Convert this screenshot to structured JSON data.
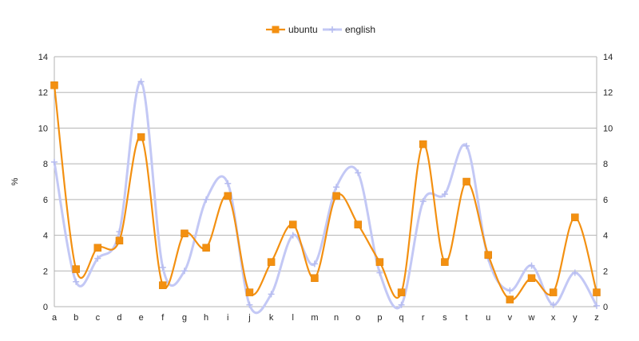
{
  "chart_data": {
    "type": "line",
    "smooth": true,
    "categories": [
      "a",
      "b",
      "c",
      "d",
      "e",
      "f",
      "g",
      "h",
      "i",
      "j",
      "k",
      "l",
      "m",
      "n",
      "o",
      "p",
      "q",
      "r",
      "s",
      "t",
      "u",
      "v",
      "w",
      "x",
      "y",
      "z"
    ],
    "ylabel": "%",
    "ylim": [
      0,
      14
    ],
    "yticks": [
      0,
      2,
      4,
      6,
      8,
      10,
      12,
      14
    ],
    "grid": true,
    "legend_position": "top-center",
    "secondary_y_axis": true,
    "series": [
      {
        "name": "ubuntu",
        "color": "#f39011",
        "marker": "square",
        "values": [
          12.4,
          2.1,
          3.3,
          3.7,
          9.5,
          1.2,
          4.1,
          3.3,
          6.2,
          0.8,
          2.5,
          4.6,
          1.6,
          6.2,
          4.6,
          2.5,
          0.8,
          9.1,
          2.5,
          7.0,
          2.9,
          0.4,
          1.6,
          0.8,
          5.0,
          0.8
        ]
      },
      {
        "name": "english",
        "color": "#c3c8f5",
        "marker": "plus",
        "values": [
          8.1,
          1.4,
          2.7,
          4.2,
          12.6,
          2.2,
          2.0,
          6.0,
          6.9,
          0.1,
          0.7,
          4.0,
          2.4,
          6.7,
          7.5,
          1.9,
          0.1,
          5.9,
          6.3,
          9.0,
          2.7,
          0.9,
          2.3,
          0.1,
          1.9,
          0.05
        ]
      }
    ]
  }
}
